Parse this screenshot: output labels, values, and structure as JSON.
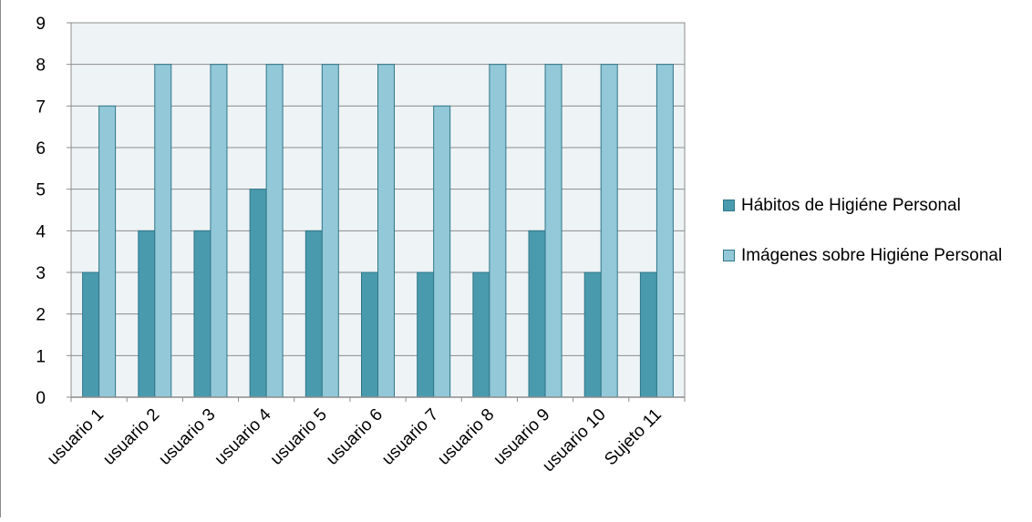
{
  "chart_data": {
    "type": "bar",
    "categories": [
      "usuario 1",
      "usuario 2",
      "usuario 3",
      "usuario 4",
      "usuario 5",
      "usuario 6",
      "usuario 7",
      "usuario 8",
      "usuario 9",
      "usuario 10",
      "Sujeto 11"
    ],
    "series": [
      {
        "name": "Hábitos de Higiéne Personal",
        "values": [
          3,
          4,
          4,
          5,
          4,
          3,
          3,
          3,
          4,
          3,
          3
        ],
        "color": "#4a9aae"
      },
      {
        "name": "Imágenes sobre Higiéne Personal",
        "values": [
          7,
          8,
          8,
          8,
          8,
          8,
          7,
          8,
          8,
          8,
          8
        ],
        "color": "#93c8d8"
      }
    ],
    "ylim": [
      0,
      9
    ],
    "yticks": [
      0,
      1,
      2,
      3,
      4,
      5,
      6,
      7,
      8,
      9
    ],
    "grid": true,
    "legend_position": "right",
    "plot_background": "#eef3f6",
    "bar_border": "#2f7789"
  }
}
